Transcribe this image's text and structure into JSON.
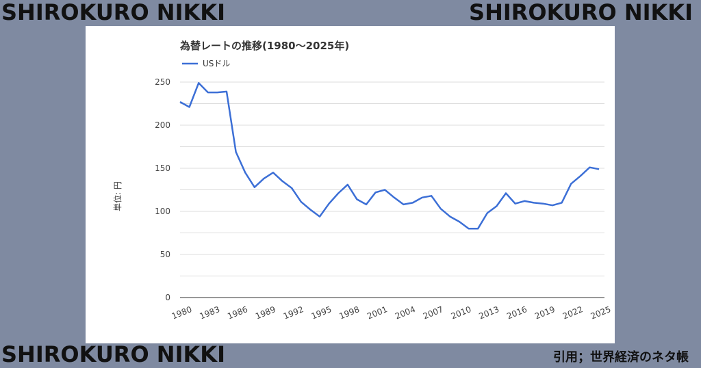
{
  "branding": {
    "top_left": "SHIROKURO NIKKI",
    "top_right": "SHIROKURO NIKKI",
    "bottom_left": "SHIROKURO NIKKI",
    "citation": "引用；世界経済のネタ帳"
  },
  "chart_data": {
    "type": "line",
    "title": "為替レートの推移(1980〜2025年)",
    "ylabel": "単位: 円",
    "xlabel": "",
    "ylim": [
      0,
      250
    ],
    "yticks": [
      0,
      50,
      100,
      150,
      200,
      250
    ],
    "grid": true,
    "legend_position": "top-left",
    "x_tick_labels": [
      "1980",
      "1983",
      "1986",
      "1989",
      "1992",
      "1995",
      "1998",
      "2001",
      "2004",
      "2007",
      "2010",
      "2013",
      "2016",
      "2019",
      "2022",
      "2025"
    ],
    "x": [
      1980,
      1981,
      1982,
      1983,
      1984,
      1985,
      1986,
      1987,
      1988,
      1989,
      1990,
      1991,
      1992,
      1993,
      1994,
      1995,
      1996,
      1997,
      1998,
      1999,
      2000,
      2001,
      2002,
      2003,
      2004,
      2005,
      2006,
      2007,
      2008,
      2009,
      2010,
      2011,
      2012,
      2013,
      2014,
      2015,
      2016,
      2017,
      2018,
      2019,
      2020,
      2021,
      2022,
      2023,
      2024,
      2025
    ],
    "series": [
      {
        "name": "USドル",
        "color": "#3c6fd6",
        "values": [
          227,
          221,
          249,
          238,
          238,
          239,
          169,
          145,
          128,
          138,
          145,
          135,
          127,
          111,
          102,
          94,
          109,
          121,
          131,
          114,
          108,
          122,
          125,
          116,
          108,
          110,
          116,
          118,
          103,
          94,
          88,
          80,
          80,
          98,
          106,
          121,
          109,
          112,
          110,
          109,
          107,
          110,
          132,
          141,
          151,
          149
        ]
      }
    ]
  }
}
